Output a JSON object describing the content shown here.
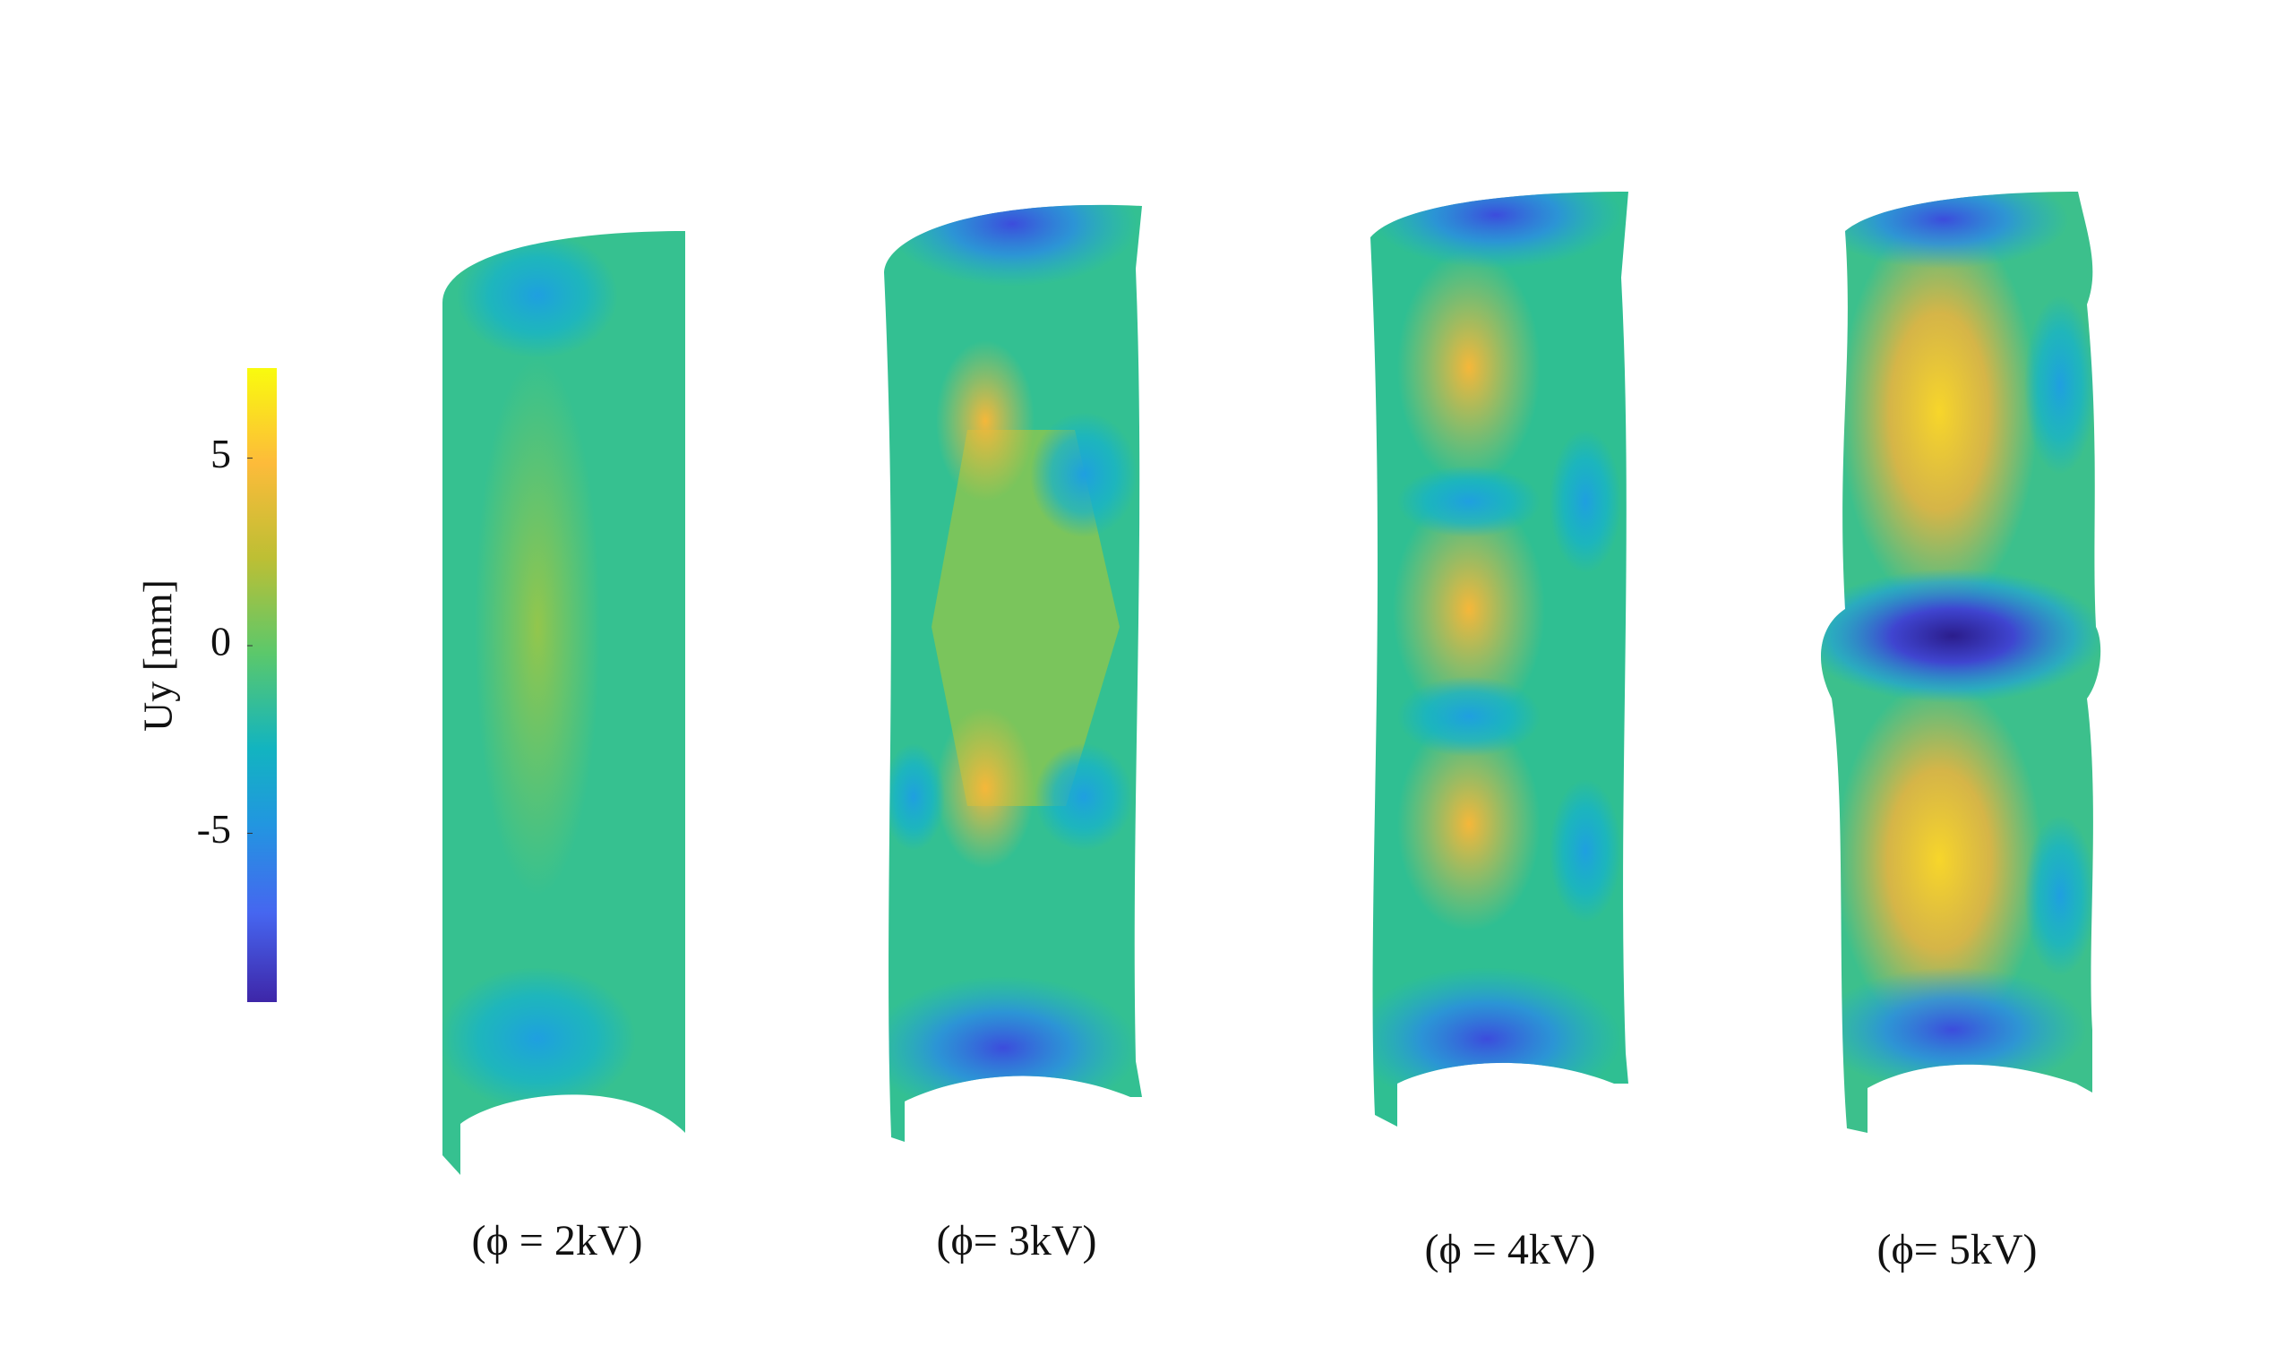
{
  "colorbar": {
    "label": "Uy [mm]",
    "limits": [
      -9.5,
      7.4
    ],
    "ticks": [
      5,
      0,
      -5
    ]
  },
  "panels": [
    {
      "label": "(ϕ = 2kV)"
    },
    {
      "label": "(ϕ= 3kV)"
    },
    {
      "label": "(ϕ = 4kV)"
    },
    {
      "label": "(ϕ= 5kV)"
    }
  ]
}
